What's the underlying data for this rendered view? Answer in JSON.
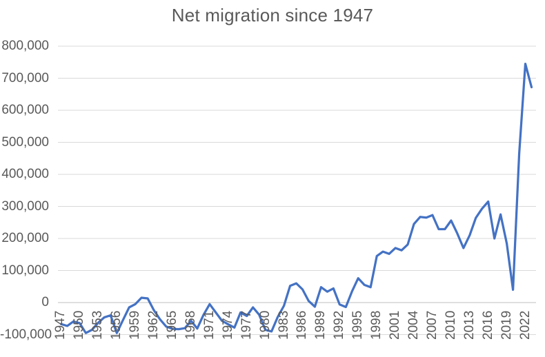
{
  "chart": {
    "title": "Net migration since 1947"
  },
  "chart_data": {
    "type": "line",
    "title": "Net migration since 1947",
    "xlabel": "",
    "ylabel": "",
    "ylim": [
      -100000,
      800000
    ],
    "grid": true,
    "legend": "none",
    "colors": {
      "line": "#4472C4",
      "grid": "#D9D9D9",
      "zero_axis": "#BFBFBF",
      "text": "#595959",
      "background": "#FFFFFF"
    },
    "years": [
      1947,
      1948,
      1949,
      1950,
      1951,
      1952,
      1953,
      1954,
      1955,
      1956,
      1957,
      1958,
      1959,
      1960,
      1961,
      1962,
      1963,
      1964,
      1965,
      1966,
      1967,
      1968,
      1969,
      1970,
      1971,
      1972,
      1973,
      1974,
      1975,
      1976,
      1977,
      1978,
      1979,
      1980,
      1981,
      1982,
      1983,
      1984,
      1985,
      1986,
      1987,
      1988,
      1989,
      1990,
      1991,
      1992,
      1993,
      1994,
      1995,
      1996,
      1997,
      1998,
      1999,
      2000,
      2001,
      2002,
      2003,
      2004,
      2005,
      2006,
      2007,
      2008,
      2009,
      2010,
      2011,
      2012,
      2013,
      2014,
      2015,
      2016,
      2017,
      2018,
      2019,
      2020,
      2021,
      2022,
      2023
    ],
    "values": [
      -67000,
      -73000,
      -59000,
      -64000,
      -95000,
      -85000,
      -63000,
      -46000,
      -40000,
      -95000,
      -55000,
      -15000,
      -5000,
      15000,
      13000,
      -24000,
      -53000,
      -75000,
      -82000,
      -83000,
      -80000,
      -57000,
      -81000,
      -39000,
      -5000,
      -31000,
      -57000,
      -68000,
      -78000,
      -31000,
      -42000,
      -15000,
      -38000,
      -85000,
      -90000,
      -45000,
      -10000,
      52000,
      60000,
      41000,
      5000,
      -13000,
      48000,
      34000,
      44000,
      -6000,
      -14000,
      35000,
      76000,
      55000,
      48000,
      145000,
      159000,
      152000,
      170000,
      163000,
      181000,
      245000,
      267000,
      265000,
      273000,
      229000,
      229000,
      256000,
      216000,
      170000,
      210000,
      264000,
      293000,
      315000,
      200000,
      275000,
      184000,
      40000,
      465000,
      745000,
      672000
    ],
    "yticks": [
      {
        "label": "800,000",
        "value": 800000
      },
      {
        "label": "700,000",
        "value": 700000
      },
      {
        "label": "600,000",
        "value": 600000
      },
      {
        "label": "500,000",
        "value": 500000
      },
      {
        "label": "400,000",
        "value": 400000
      },
      {
        "label": "300,000",
        "value": 300000
      },
      {
        "label": "200,000",
        "value": 200000
      },
      {
        "label": "100,000",
        "value": 100000
      },
      {
        "label": "0",
        "value": 0
      },
      {
        "label": "-100,000",
        "value": -100000
      }
    ],
    "xticks": [
      "1947",
      "1950",
      "1953",
      "1956",
      "1959",
      "1962",
      "1965",
      "1968",
      "1971",
      "1974",
      "1977",
      "1980",
      "1983",
      "1986",
      "1989",
      "1992",
      "1995",
      "1998",
      "2001",
      "2004",
      "2007",
      "2010",
      "2013",
      "2016",
      "2019",
      "2022"
    ],
    "xtick_interval_years": 3
  }
}
